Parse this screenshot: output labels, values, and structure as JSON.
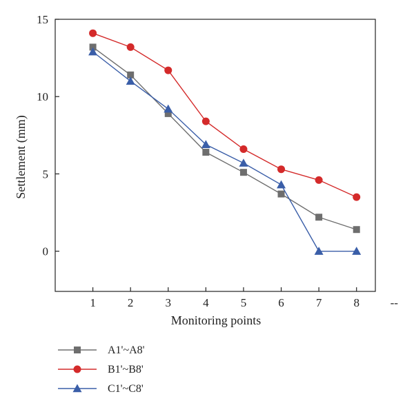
{
  "chart_data": {
    "type": "line",
    "xlabel": "Monitoring points",
    "ylabel": "Settlement (mm)",
    "x": [
      1,
      2,
      3,
      4,
      5,
      6,
      7,
      8
    ],
    "x_tick_labels": [
      "1",
      "2",
      "3",
      "4",
      "5",
      "6",
      "7",
      "8",
      "--"
    ],
    "xlim": [
      0,
      8.5
    ],
    "ylim": [
      -2.6,
      15
    ],
    "y_ticks": [
      0,
      5,
      10,
      15
    ],
    "grid": false,
    "legend_placement": "bottom-left, below plot",
    "series": [
      {
        "name": "A1'~A8'",
        "color": "#6e6e6e",
        "marker": "square",
        "values": [
          13.2,
          11.4,
          8.9,
          6.4,
          5.1,
          3.7,
          2.2,
          1.4
        ]
      },
      {
        "name": "B1'~B8'",
        "color": "#d42a2a",
        "marker": "circle",
        "values": [
          14.1,
          13.2,
          11.7,
          8.4,
          6.6,
          5.3,
          4.6,
          3.5
        ]
      },
      {
        "name": "C1'~C8'",
        "color": "#3a5ea8",
        "marker": "triangle",
        "values": [
          12.9,
          11.0,
          9.2,
          6.9,
          5.7,
          4.3,
          0.0,
          0.0
        ]
      }
    ]
  }
}
